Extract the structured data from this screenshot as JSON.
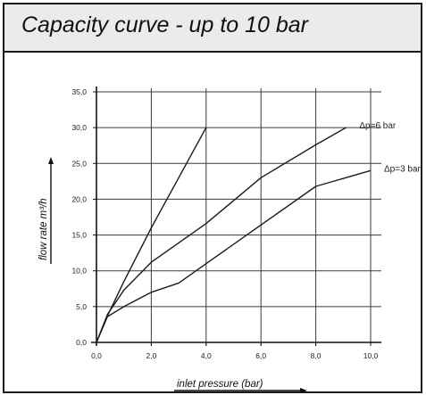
{
  "title": "Capacity curve - up to 10 bar",
  "chart_data": {
    "type": "line",
    "title": "Capacity curve - up to 10 bar",
    "xlabel": "inlet pressure (bar)",
    "ylabel": "flow rate m³/h",
    "xlim": [
      0,
      10
    ],
    "ylim": [
      0,
      35
    ],
    "x_ticks": [
      "0,0",
      "2,0",
      "4,0",
      "6,0",
      "8,0",
      "10,0"
    ],
    "y_ticks": [
      "0,0",
      "5,0",
      "10,0",
      "15,0",
      "20,0",
      "25,0",
      "30,0",
      "35,0"
    ],
    "x_tick_values": [
      0,
      2,
      4,
      6,
      8,
      10
    ],
    "y_tick_values": [
      0,
      5,
      10,
      15,
      20,
      25,
      30,
      35
    ],
    "grid": true,
    "series": [
      {
        "name": "",
        "x": [
          0.0,
          0.4,
          1.0,
          2.0,
          3.0,
          4.0
        ],
        "y": [
          0.0,
          3.7,
          8.5,
          16.0,
          23.0,
          30.0
        ]
      },
      {
        "name": "Δp=6 bar",
        "x": [
          0.0,
          0.4,
          1.0,
          2.0,
          4.0,
          6.0,
          8.0,
          9.1
        ],
        "y": [
          0.0,
          3.9,
          7.3,
          11.2,
          16.6,
          23.0,
          27.6,
          30.0
        ]
      },
      {
        "name": "Δp=3 bar",
        "x": [
          0.0,
          0.4,
          1.0,
          2.0,
          3.0,
          4.0,
          6.0,
          8.0,
          10.0
        ],
        "y": [
          0.0,
          3.6,
          5.0,
          7.0,
          8.3,
          11.0,
          16.4,
          21.8,
          24.0
        ]
      }
    ]
  }
}
